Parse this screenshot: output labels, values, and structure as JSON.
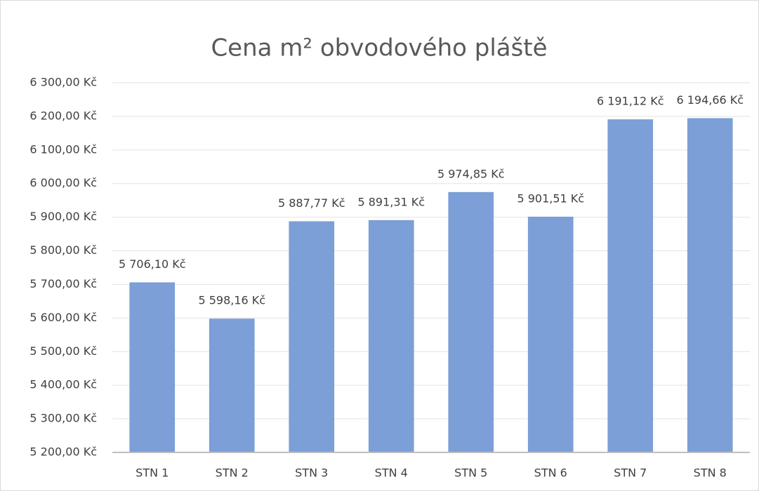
{
  "chart_data": {
    "type": "bar",
    "title": "Cena m² obvodového pláště",
    "categories": [
      "STN 1",
      "STN 2",
      "STN 3",
      "STN 4",
      "STN 5",
      "STN 6",
      "STN 7",
      "STN 8"
    ],
    "values": [
      5706.1,
      5598.16,
      5887.77,
      5891.31,
      5974.85,
      5901.51,
      6191.12,
      6194.66
    ],
    "value_labels": [
      "5 706,10 Kč",
      "5 598,16 Kč",
      "5 887,77 Kč",
      "5 891,31 Kč",
      "5 974,85 Kč",
      "5 901,51 Kč",
      "6 191,12 Kč",
      "6 194,66 Kč"
    ],
    "color": "#7b9fd6",
    "ylim": [
      5200,
      6300
    ],
    "yticks": [
      {
        "value": 5200,
        "label": "5 200,00 Kč"
      },
      {
        "value": 5300,
        "label": "5 300,00 Kč"
      },
      {
        "value": 5400,
        "label": "5 400,00 Kč"
      },
      {
        "value": 5500,
        "label": "5 500,00 Kč"
      },
      {
        "value": 5600,
        "label": "5 600,00 Kč"
      },
      {
        "value": 5700,
        "label": "5 700,00 Kč"
      },
      {
        "value": 5800,
        "label": "5 800,00 Kč"
      },
      {
        "value": 5900,
        "label": "5 900,00 Kč"
      },
      {
        "value": 6000,
        "label": "6 000,00 Kč"
      },
      {
        "value": 6100,
        "label": "6 100,00 Kč"
      },
      {
        "value": 6200,
        "label": "6 200,00 Kč"
      },
      {
        "value": 6300,
        "label": "6 300,00 Kč"
      }
    ],
    "grid": true
  }
}
